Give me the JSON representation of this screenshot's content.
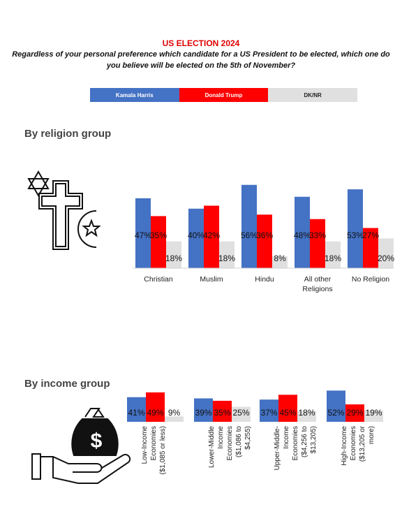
{
  "header": {
    "title": "US ELECTION 2024",
    "question": "Regardless of your personal preference which candidate for a US President to be elected, which one do you believe will be elected on the 5th of November?"
  },
  "legend": [
    {
      "label": "Kamala Harris",
      "color": "#4472c4",
      "text_color": "#ffffff"
    },
    {
      "label": "Donald Trump",
      "color": "#ff0000",
      "text_color": "#ffffff"
    },
    {
      "label": "DK/NR",
      "color": "#e0e0e0",
      "text_color": "#222222"
    }
  ],
  "sections": {
    "religion": "By religion group",
    "income": "By income group"
  },
  "chart_data": [
    {
      "type": "bar",
      "categories": [
        "Christian",
        "Muslim",
        "Hindu",
        "All other Religions",
        "No Religion"
      ],
      "series": [
        {
          "name": "Kamala Harris",
          "values": [
            47,
            40,
            56,
            48,
            53
          ]
        },
        {
          "name": "Donald Trump",
          "values": [
            35,
            42,
            36,
            33,
            27
          ]
        },
        {
          "name": "DK/NR",
          "values": [
            18,
            18,
            8,
            18,
            20
          ]
        }
      ],
      "title": "By religion group",
      "ylim": [
        0,
        60
      ]
    },
    {
      "type": "bar",
      "categories": [
        "Low-Income Economies ($1,085 or less)",
        "Lower-Middle Income Economies ($1,086 to $4,255)",
        "Upper-Middle-Income Economies ($4,256 to $13,205)",
        "High-Income Economies ($13,205 or more)"
      ],
      "series": [
        {
          "name": "Kamala Harris",
          "values": [
            41,
            39,
            37,
            52
          ]
        },
        {
          "name": "Donald Trump",
          "values": [
            49,
            35,
            45,
            29
          ]
        },
        {
          "name": "DK/NR",
          "values": [
            9,
            25,
            18,
            19
          ]
        }
      ],
      "title": "By income group",
      "ylim": [
        0,
        60
      ]
    }
  ],
  "labels": {
    "religion_lines": [
      [
        "Christian"
      ],
      [
        "Muslim"
      ],
      [
        "Hindu"
      ],
      [
        "All other",
        "Religions"
      ],
      [
        "No Religion"
      ]
    ],
    "income_lines": [
      [
        "Low-Income",
        "Economies",
        "($1,085 or less)"
      ],
      [
        "Lower-Middle",
        "Income",
        "Economies",
        "($1,086 to",
        "$4,255)"
      ],
      [
        "Upper-Middle-",
        "Income",
        "Economies",
        "($4,256 to",
        "$13,205)"
      ],
      [
        "High-Income",
        "Economies",
        "($13,205 or",
        "more)"
      ]
    ]
  },
  "icons": {
    "religion": "religious-symbols-icon",
    "income": "money-bag-hand-icon"
  }
}
